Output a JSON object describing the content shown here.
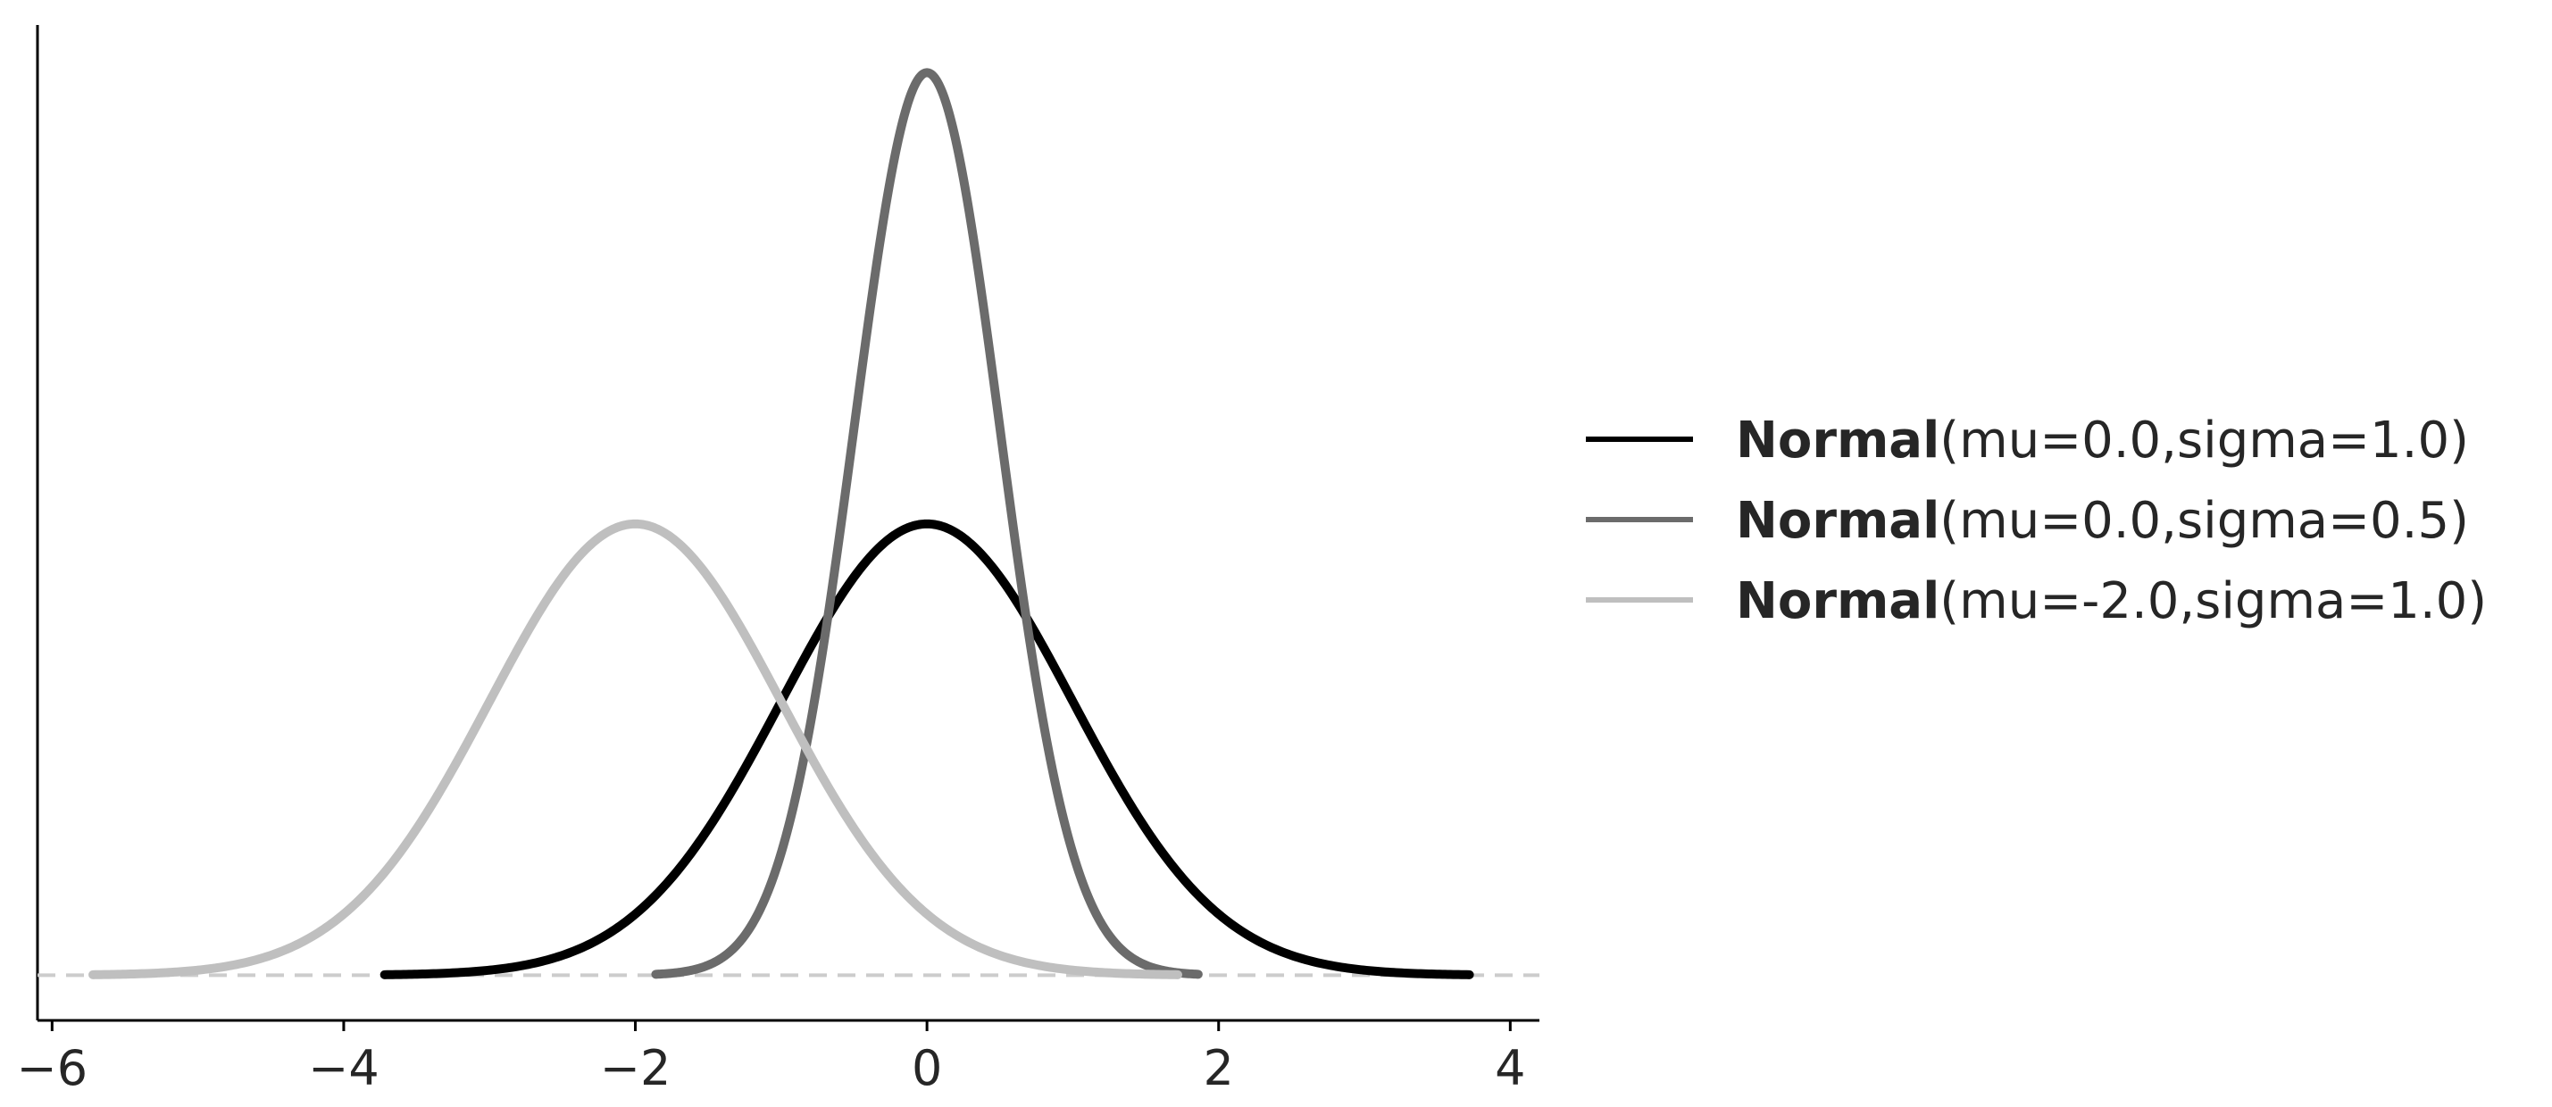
{
  "chart_data": {
    "type": "line",
    "title": "",
    "xlabel": "",
    "ylabel": "",
    "xlim": [
      -6.1,
      4.2
    ],
    "ylim": [
      -0.04,
      0.84
    ],
    "x_ticks": [
      -6,
      -4,
      -2,
      0,
      2,
      4
    ],
    "x_tick_labels": [
      "−6",
      "−4",
      "−2",
      "0",
      "2",
      "4"
    ],
    "y_axis_ticks": "none",
    "grid": false,
    "legend": "right",
    "baseline": {
      "y": 0,
      "style": "dashed",
      "color": "#cccccc"
    },
    "series": [
      {
        "name_bold": "Normal",
        "name_rest": "(mu=0.0,sigma=1.0)",
        "mu": 0.0,
        "sigma": 1.0,
        "x_range": [
          -3.72,
          3.72
        ],
        "color": "#000000"
      },
      {
        "name_bold": "Normal",
        "name_rest": "(mu=0.0,sigma=0.5)",
        "mu": 0.0,
        "sigma": 0.5,
        "x_range": [
          -1.86,
          1.86
        ],
        "color": "#6b6b6b"
      },
      {
        "name_bold": "Normal",
        "name_rest": "(mu=-2.0,sigma=1.0)",
        "mu": -2.0,
        "sigma": 1.0,
        "x_range": [
          -5.72,
          1.72
        ],
        "color": "#bfbfbf"
      }
    ]
  }
}
